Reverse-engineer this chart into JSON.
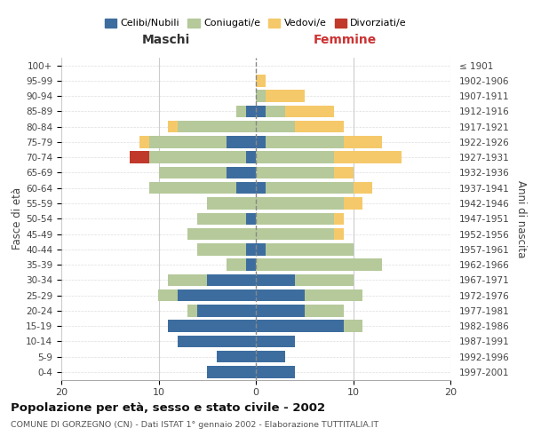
{
  "age_groups": [
    "0-4",
    "5-9",
    "10-14",
    "15-19",
    "20-24",
    "25-29",
    "30-34",
    "35-39",
    "40-44",
    "45-49",
    "50-54",
    "55-59",
    "60-64",
    "65-69",
    "70-74",
    "75-79",
    "80-84",
    "85-89",
    "90-94",
    "95-99",
    "100+"
  ],
  "birth_years": [
    "1997-2001",
    "1992-1996",
    "1987-1991",
    "1982-1986",
    "1977-1981",
    "1972-1976",
    "1967-1971",
    "1962-1966",
    "1957-1961",
    "1952-1956",
    "1947-1951",
    "1942-1946",
    "1937-1941",
    "1932-1936",
    "1927-1931",
    "1922-1926",
    "1917-1921",
    "1912-1916",
    "1907-1911",
    "1902-1906",
    "≤ 1901"
  ],
  "males": {
    "celibi": [
      5,
      4,
      8,
      9,
      6,
      8,
      5,
      1,
      1,
      0,
      1,
      0,
      2,
      3,
      1,
      3,
      0,
      1,
      0,
      0,
      0
    ],
    "coniugati": [
      0,
      0,
      0,
      0,
      1,
      2,
      4,
      2,
      5,
      7,
      5,
      5,
      9,
      7,
      10,
      8,
      8,
      1,
      0,
      0,
      0
    ],
    "vedovi": [
      0,
      0,
      0,
      0,
      0,
      0,
      0,
      0,
      0,
      0,
      0,
      0,
      0,
      0,
      0,
      1,
      1,
      0,
      0,
      0,
      0
    ],
    "divorziati": [
      0,
      0,
      0,
      0,
      0,
      0,
      0,
      0,
      0,
      0,
      0,
      0,
      0,
      0,
      2,
      0,
      0,
      0,
      0,
      0,
      0
    ]
  },
  "females": {
    "nubili": [
      4,
      3,
      4,
      9,
      5,
      5,
      4,
      0,
      1,
      0,
      0,
      0,
      1,
      0,
      0,
      1,
      0,
      1,
      0,
      0,
      0
    ],
    "coniugate": [
      0,
      0,
      0,
      2,
      4,
      6,
      6,
      13,
      9,
      8,
      8,
      9,
      9,
      8,
      8,
      8,
      4,
      2,
      1,
      0,
      0
    ],
    "vedove": [
      0,
      0,
      0,
      0,
      0,
      0,
      0,
      0,
      0,
      1,
      1,
      2,
      2,
      2,
      7,
      4,
      5,
      5,
      4,
      1,
      0
    ],
    "divorziate": [
      0,
      0,
      0,
      0,
      0,
      0,
      0,
      0,
      0,
      0,
      0,
      0,
      0,
      0,
      0,
      0,
      0,
      0,
      0,
      0,
      0
    ]
  },
  "color_celibi": "#3d6d9e",
  "color_coniugati": "#b5c99a",
  "color_vedovi": "#f5c96a",
  "color_divorziati": "#c0392b",
  "title": "Popolazione per età, sesso e stato civile - 2002",
  "subtitle": "COMUNE DI GORZEGNO (CN) - Dati ISTAT 1° gennaio 2002 - Elaborazione TUTTITALIA.IT",
  "xlabel_left": "Maschi",
  "xlabel_right": "Femmine",
  "ylabel_left": "Fasce di età",
  "ylabel_right": "Anni di nascita",
  "xlim": 20,
  "bg_color": "#ffffff",
  "grid_color": "#cccccc"
}
